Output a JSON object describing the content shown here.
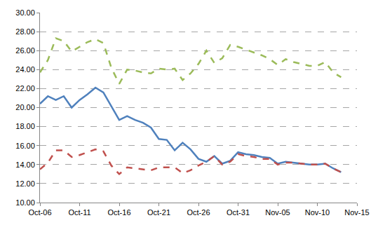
{
  "chart_data": {
    "type": "line",
    "categories": [
      "Oct-06",
      null,
      null,
      null,
      null,
      "Oct-11",
      null,
      null,
      null,
      null,
      "Oct-16",
      null,
      null,
      null,
      null,
      "Oct-21",
      null,
      null,
      null,
      null,
      "Oct-26",
      null,
      null,
      null,
      null,
      "Oct-31",
      null,
      null,
      null,
      null,
      "Nov-05",
      null,
      null,
      null,
      null,
      "Nov-10",
      null,
      null,
      null,
      null,
      "Nov-15"
    ],
    "series": [
      {
        "color": "#9bbb59",
        "line_style": "dashed",
        "values": [
          23.7,
          25.0,
          27.3,
          27.0,
          25.9,
          26.4,
          26.9,
          27.2,
          26.8,
          24.2,
          22.5,
          24.0,
          23.9,
          23.7,
          23.6,
          24.1,
          24.0,
          24.1,
          22.9,
          23.6,
          24.6,
          26.0,
          24.7,
          25.2,
          26.6,
          26.4,
          26.1,
          25.8,
          25.5,
          25.1,
          24.5,
          25.1,
          24.8,
          24.6,
          24.4,
          24.4,
          24.8,
          23.7,
          23.2,
          null,
          null
        ]
      },
      {
        "color": "#4f81bd",
        "line_style": "solid",
        "values": [
          20.4,
          21.2,
          20.8,
          21.2,
          20.0,
          20.8,
          21.4,
          22.1,
          21.6,
          20.2,
          18.7,
          19.1,
          18.7,
          18.4,
          17.9,
          16.7,
          16.6,
          15.5,
          16.3,
          15.6,
          14.6,
          14.3,
          14.9,
          14.1,
          14.4,
          15.3,
          15.1,
          15.0,
          14.8,
          14.7,
          14.1,
          14.3,
          14.2,
          14.1,
          14.0,
          14.0,
          14.1,
          13.6,
          13.2,
          null,
          null
        ]
      },
      {
        "color": "#c0504d",
        "line_style": "dashed",
        "values": [
          13.5,
          14.2,
          15.5,
          15.5,
          14.8,
          15.0,
          15.3,
          15.6,
          15.4,
          13.9,
          13.0,
          13.7,
          13.6,
          13.5,
          13.4,
          13.7,
          13.7,
          13.7,
          13.1,
          13.4,
          13.9,
          14.3,
          14.9,
          14.0,
          14.3,
          15.1,
          14.9,
          14.8,
          14.6,
          14.6,
          14.0,
          14.2,
          14.2,
          14.1,
          14.0,
          14.0,
          14.1,
          13.6,
          13.2,
          null,
          null
        ]
      }
    ],
    "ylim": [
      10,
      30
    ],
    "yticks": [
      {
        "value": 10,
        "label": "10.00"
      },
      {
        "value": 12,
        "label": "12.00"
      },
      {
        "value": 14,
        "label": "14.00"
      },
      {
        "value": 16,
        "label": "16.00"
      },
      {
        "value": 18,
        "label": "18.00"
      },
      {
        "value": 20,
        "label": "20.00"
      },
      {
        "value": 22,
        "label": "22.00"
      },
      {
        "value": 24,
        "label": "24.00"
      },
      {
        "value": 26,
        "label": "26.00"
      },
      {
        "value": 28,
        "label": "28.00"
      },
      {
        "value": 30,
        "label": "30.00"
      }
    ],
    "grid": true
  }
}
